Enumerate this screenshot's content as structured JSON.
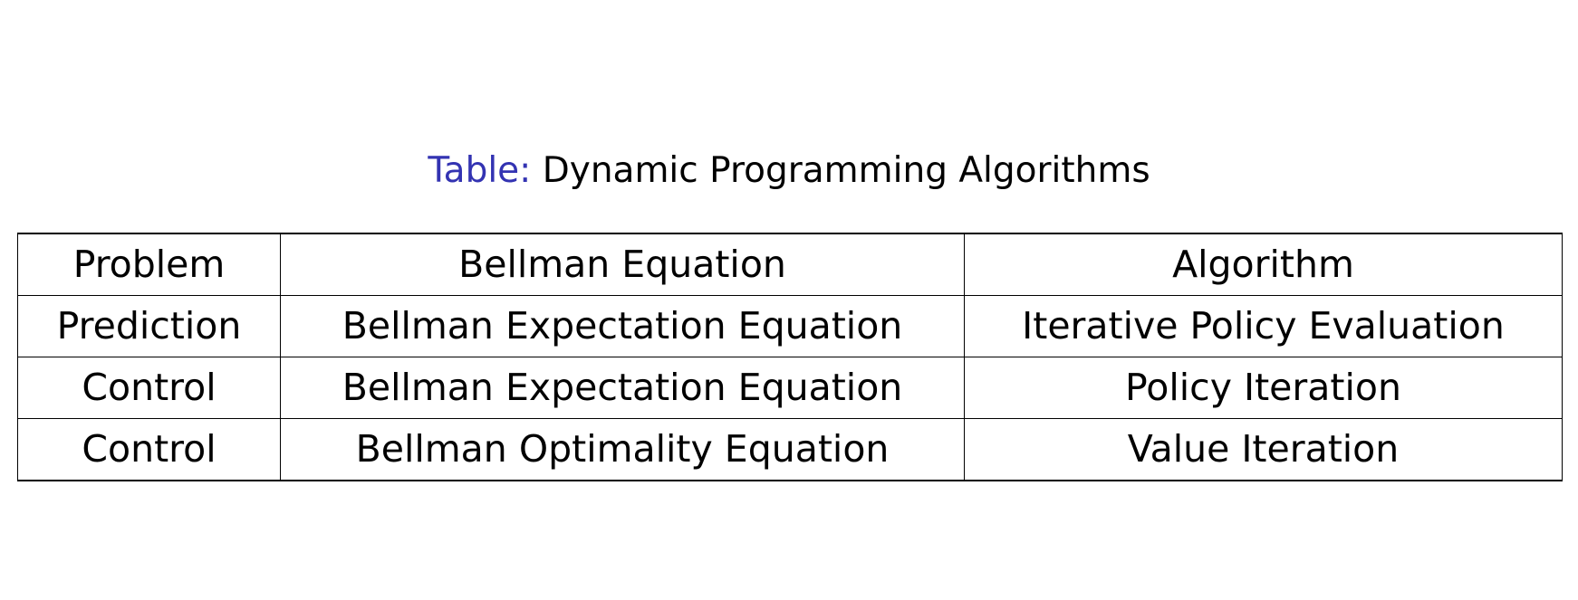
{
  "caption": {
    "label": "Table:",
    "text": "Dynamic Programming Algorithms",
    "label_color": "#3333b2"
  },
  "table": {
    "headers": [
      "Problem",
      "Bellman Equation",
      "Algorithm"
    ],
    "rows": [
      [
        "Prediction",
        "Bellman Expectation Equation",
        "Iterative Policy Evaluation"
      ],
      [
        "Control",
        "Bellman Expectation Equation",
        "Policy Iteration"
      ],
      [
        "Control",
        "Bellman Optimality Equation",
        "Value Iteration"
      ]
    ]
  }
}
